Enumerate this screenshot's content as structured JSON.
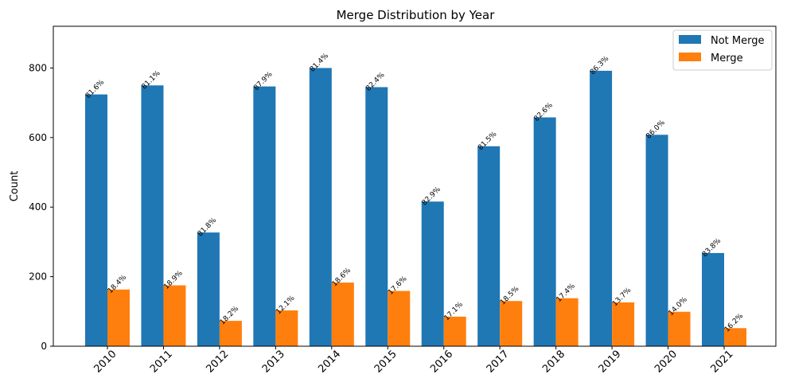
{
  "chart_data": {
    "type": "bar",
    "title": "Merge Distribution by Year",
    "xlabel": "",
    "ylabel": "Count",
    "ylim": [
      0,
      920
    ],
    "yticks": [
      0,
      200,
      400,
      600,
      800
    ],
    "categories": [
      "2010",
      "2011",
      "2012",
      "2013",
      "2014",
      "2015",
      "2016",
      "2017",
      "2018",
      "2019",
      "2020",
      "2021"
    ],
    "series": [
      {
        "name": "Not Merge",
        "color": "#1f77b4",
        "values": [
          724,
          750,
          327,
          747,
          800,
          745,
          416,
          575,
          658,
          792,
          608,
          268
        ],
        "labels": [
          "81.6%",
          "81.1%",
          "81.8%",
          "87.9%",
          "81.4%",
          "82.4%",
          "82.9%",
          "81.5%",
          "82.6%",
          "86.3%",
          "86.0%",
          "83.8%"
        ]
      },
      {
        "name": "Merge",
        "color": "#ff7f0e",
        "values": [
          163,
          175,
          73,
          103,
          183,
          159,
          85,
          130,
          138,
          126,
          99,
          52
        ],
        "labels": [
          "18.4%",
          "18.9%",
          "18.2%",
          "12.1%",
          "18.6%",
          "17.6%",
          "17.1%",
          "18.5%",
          "17.4%",
          "13.7%",
          "14.0%",
          "16.2%"
        ]
      }
    ],
    "legend_position": "top-right",
    "grid": false
  }
}
